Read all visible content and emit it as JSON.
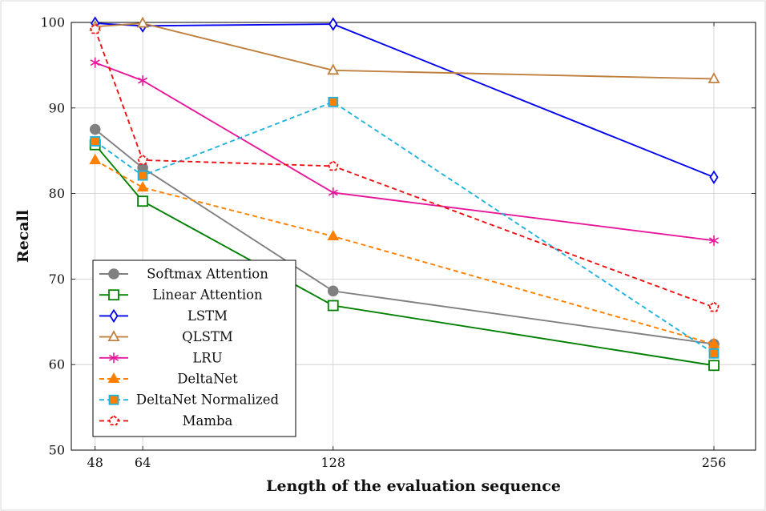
{
  "chart_data": {
    "type": "line",
    "title": "",
    "xlabel": "Length of the evaluation sequence",
    "ylabel": "Recall",
    "x": [
      48,
      64,
      128,
      256
    ],
    "xlim": [
      40,
      270
    ],
    "ylim": [
      50,
      100
    ],
    "x_ticks": [
      48,
      64,
      128,
      256
    ],
    "y_ticks": [
      50,
      60,
      70,
      80,
      90,
      100
    ],
    "grid": true,
    "legend_position": "bottom-left",
    "series": [
      {
        "name": "Softmax Attention",
        "values": [
          87.5,
          83.0,
          68.6,
          62.4
        ],
        "color": "#808080",
        "dash": "solid",
        "marker": "circle-filled"
      },
      {
        "name": "Linear Attention",
        "values": [
          85.7,
          79.1,
          66.9,
          59.9
        ],
        "color": "#008000",
        "dash": "solid",
        "marker": "square-open"
      },
      {
        "name": "LSTM",
        "values": [
          99.9,
          99.6,
          99.8,
          81.9
        ],
        "color": "#0000ee",
        "dash": "solid",
        "marker": "diamond-open"
      },
      {
        "name": "QLSTM",
        "values": [
          99.5,
          99.9,
          94.4,
          93.4
        ],
        "color": "#bf8040",
        "dash": "solid",
        "marker": "triangle-open"
      },
      {
        "name": "LRU",
        "values": [
          95.3,
          93.2,
          80.1,
          74.5
        ],
        "color": "#e6179a",
        "dash": "solid",
        "marker": "star"
      },
      {
        "name": "DeltaNet",
        "values": [
          83.9,
          80.7,
          75.0,
          62.4
        ],
        "color": "#ff8000",
        "dash": "dashed",
        "marker": "triangle-filled"
      },
      {
        "name": "DeltaNet Normalized",
        "values": [
          86.1,
          82.1,
          90.7,
          61.3
        ],
        "color": "#1fb2de",
        "dash": "dashed",
        "marker": "square-filled"
      },
      {
        "name": "Mamba",
        "values": [
          99.2,
          83.9,
          83.2,
          66.7
        ],
        "color": "#ee1111",
        "dash": "dashed",
        "marker": "pentagon-open"
      }
    ]
  }
}
